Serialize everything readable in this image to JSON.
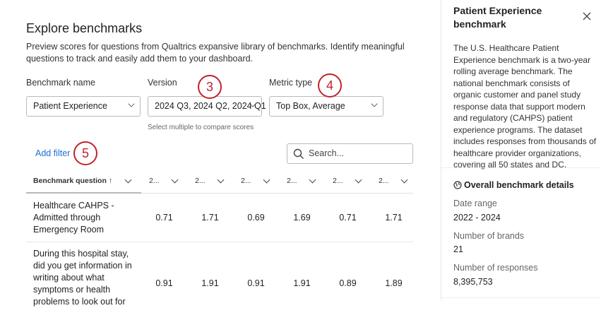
{
  "main": {
    "title": "Explore benchmarks",
    "intro": "Preview scores for questions from Qualtrics expansive library of benchmarks. Identify meaningful questions to track and easily add them to your dashboard.",
    "benchmark_name_label": "Benchmark name",
    "benchmark_name_value": "Patient Experience",
    "version_label": "Version",
    "version_value": "2024 Q3, 2024 Q2, 2024 Q1",
    "version_hint": "Select multiple to compare scores",
    "metric_label": "Metric type",
    "metric_value": "Top Box, Average",
    "add_filter": "Add filter",
    "search_placeholder": "Search...",
    "steps": [
      "3",
      "4",
      "5"
    ],
    "table": {
      "headers": [
        "Benchmark question",
        "2...",
        "2...",
        "2...",
        "2...",
        "2...",
        "2..."
      ],
      "sort": "ascending",
      "rows": [
        {
          "question": "Healthcare CAHPS - Admitted through Emergency Room",
          "values": [
            "0.71",
            "1.71",
            "0.69",
            "1.69",
            "0.71",
            "1.71"
          ]
        },
        {
          "question": "During this hospital stay, did you get information in writing about what symptoms or health problems to look out for",
          "values": [
            "0.91",
            "1.91",
            "0.91",
            "1.91",
            "0.89",
            "1.89"
          ]
        }
      ]
    }
  },
  "panel": {
    "title": "Patient Experience benchmark",
    "description": "The U.S. Healthcare Patient Experience benchmark is a two-year rolling average benchmark. The national benchmark consists of organic customer and panel study response data that support modern and regulatory (CAHPS) patient experience programs. The dataset includes responses from thousands of healthcare provider organizations, covering all 50 states and DC.",
    "details_heading": "Overall benchmark details",
    "details": [
      {
        "label": "Date range",
        "value": "2022 - 2024"
      },
      {
        "label": "Number of brands",
        "value": "21"
      },
      {
        "label": "Number of responses",
        "value": "8,395,753"
      }
    ]
  },
  "colors": {
    "accent": "#1a6fd1",
    "step_marker": "#c0222c"
  }
}
